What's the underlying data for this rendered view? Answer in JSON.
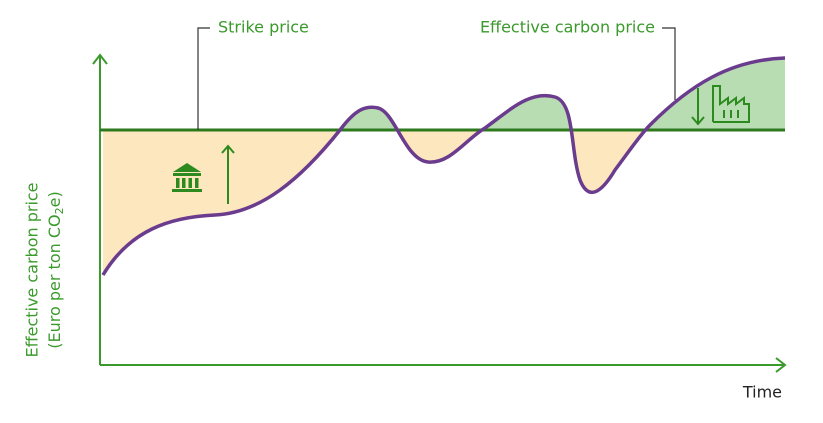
{
  "labels": {
    "strike_price": "Strike price",
    "effective_carbon_price": "Effective carbon price",
    "x_axis": "Time",
    "y_axis_line1": "Effective carbon price",
    "y_axis_line2_a": "(Euro per ton CO",
    "y_axis_line2_sub": "2",
    "y_axis_line2_b": "e)"
  }
}
